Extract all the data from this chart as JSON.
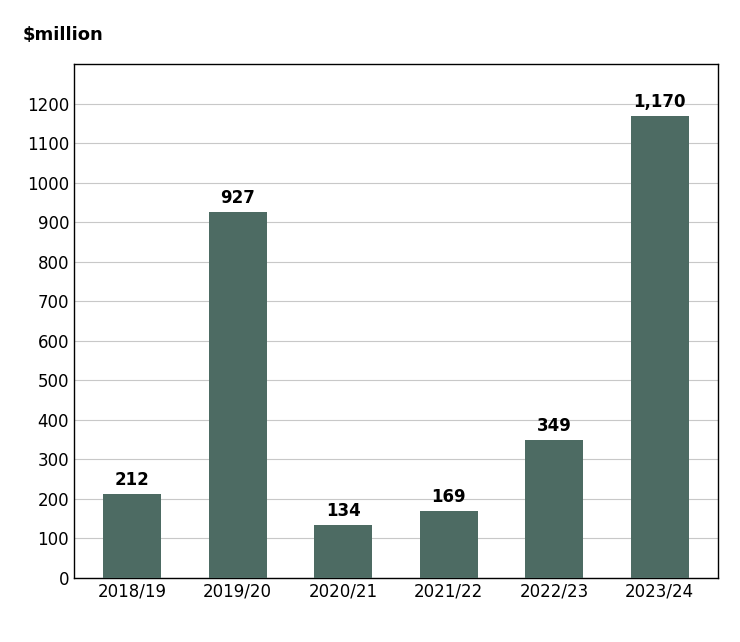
{
  "categories": [
    "2018/19",
    "2019/20",
    "2020/21",
    "2021/22",
    "2022/23",
    "2023/24"
  ],
  "values": [
    212,
    927,
    134,
    169,
    349,
    1170
  ],
  "bar_color": "#4d6b63",
  "ylabel": "$million",
  "ylim": [
    0,
    1300
  ],
  "yticks": [
    0,
    100,
    200,
    300,
    400,
    500,
    600,
    700,
    800,
    900,
    1000,
    1100,
    1200
  ],
  "bar_labels": [
    "212",
    "927",
    "134",
    "169",
    "349",
    "1,170"
  ],
  "label_fontsize": 12,
  "ylabel_fontsize": 13,
  "xtick_fontsize": 12,
  "ytick_fontsize": 12,
  "background_color": "#ffffff",
  "bar_width": 0.55,
  "grid_color": "#c8c8c8",
  "border_color": "#000000"
}
